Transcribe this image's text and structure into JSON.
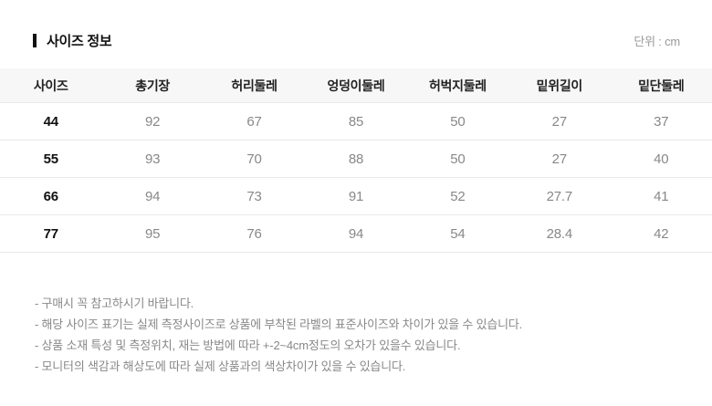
{
  "page": {
    "title": "사이즈 정보",
    "unit_label": "단위 : cm"
  },
  "colors": {
    "title_text": "#111111",
    "header_bg": "#f7f7f7",
    "header_text": "#222222",
    "cell_text": "#888888",
    "size_col_text": "#111111",
    "row_border": "#e9e9e9",
    "note_text": "#888888",
    "unit_text": "#999999"
  },
  "size_table": {
    "columns": [
      "사이즈",
      "총기장",
      "허리둘레",
      "엉덩이둘레",
      "허벅지둘레",
      "밑위길이",
      "밑단둘레"
    ],
    "rows": [
      [
        "44",
        "92",
        "67",
        "85",
        "50",
        "27",
        "37"
      ],
      [
        "55",
        "93",
        "70",
        "88",
        "50",
        "27",
        "40"
      ],
      [
        "66",
        "94",
        "73",
        "91",
        "52",
        "27.7",
        "41"
      ],
      [
        "77",
        "95",
        "76",
        "94",
        "54",
        "28.4",
        "42"
      ]
    ]
  },
  "notes": [
    "- 구매시 꼭 참고하시기 바랍니다.",
    "- 해당 사이즈 표기는 실제 측정사이즈로 상품에 부착된 라벨의 표준사이즈와 차이가 있을 수 있습니다.",
    "- 상품 소재 특성 및 측정위치, 재는 방법에 따라 +-2~4cm정도의 오차가 있을수 있습니다.",
    "- 모니터의 색감과 해상도에 따라 실제 상품과의 색상차이가 있을 수 있습니다."
  ]
}
